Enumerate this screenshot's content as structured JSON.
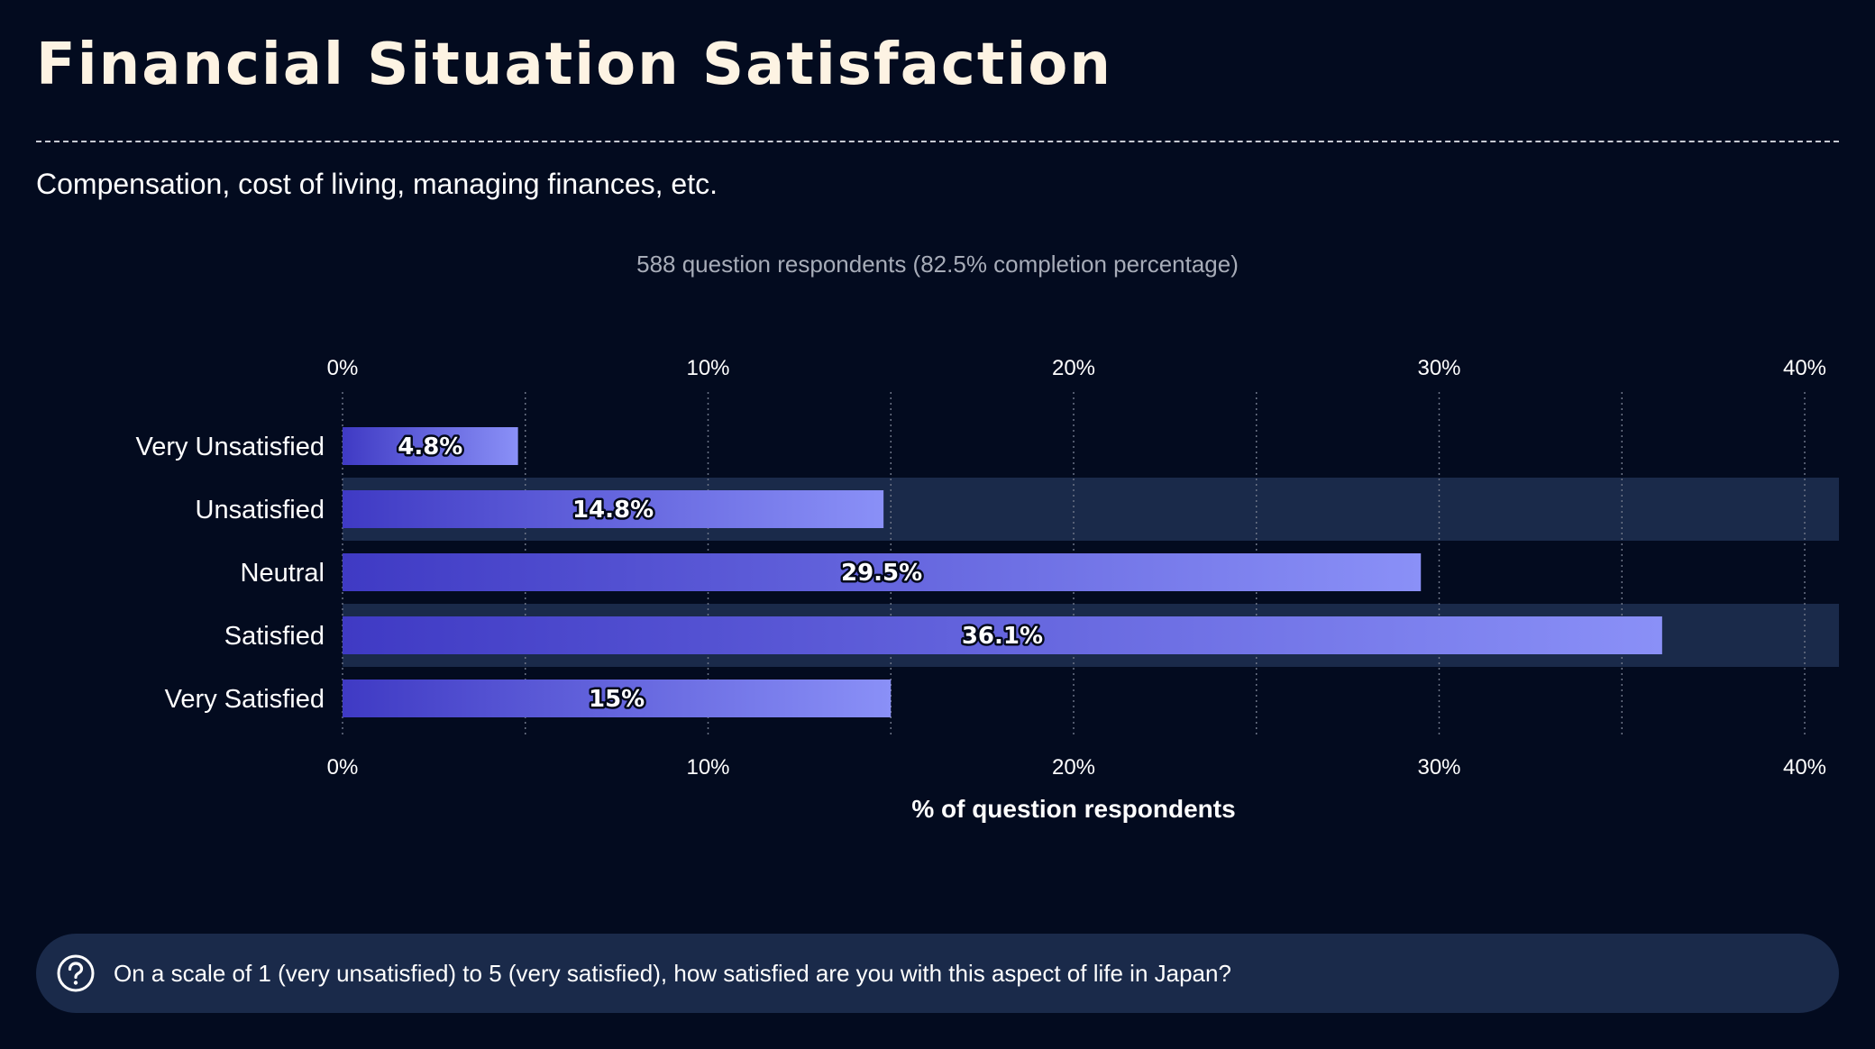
{
  "header": {
    "title": "Financial Situation Satisfaction",
    "subtitle": "Compensation, cost of living, managing finances, etc."
  },
  "respondents_note": "588 question respondents (82.5% completion percentage)",
  "question": {
    "icon": "question-circle-icon",
    "text": "On a scale of 1 (very unsatisfied) to 5 (very satisfied), how satisfied are you with this aspect of life in Japan?"
  },
  "colors": {
    "background": "#030b1f",
    "bar_start": "#3f3ac4",
    "bar_end": "#8a90f7",
    "row_band": "#1a2a4a",
    "title": "#fdf3e3"
  },
  "chart_data": {
    "type": "bar",
    "orientation": "horizontal",
    "categories": [
      "Very Unsatisfied",
      "Unsatisfied",
      "Neutral",
      "Satisfied",
      "Very Satisfied"
    ],
    "values": [
      4.8,
      14.8,
      29.5,
      36.1,
      15
    ],
    "value_labels": [
      "4.8%",
      "14.8%",
      "29.5%",
      "36.1%",
      "15%"
    ],
    "xlabel": "% of question respondents",
    "xlim": [
      0,
      41
    ],
    "ticks": [
      0,
      10,
      20,
      30,
      40
    ],
    "tick_labels": [
      "0%",
      "10%",
      "20%",
      "30%",
      "40%"
    ],
    "grid": true,
    "axis_top_and_bottom": true
  }
}
